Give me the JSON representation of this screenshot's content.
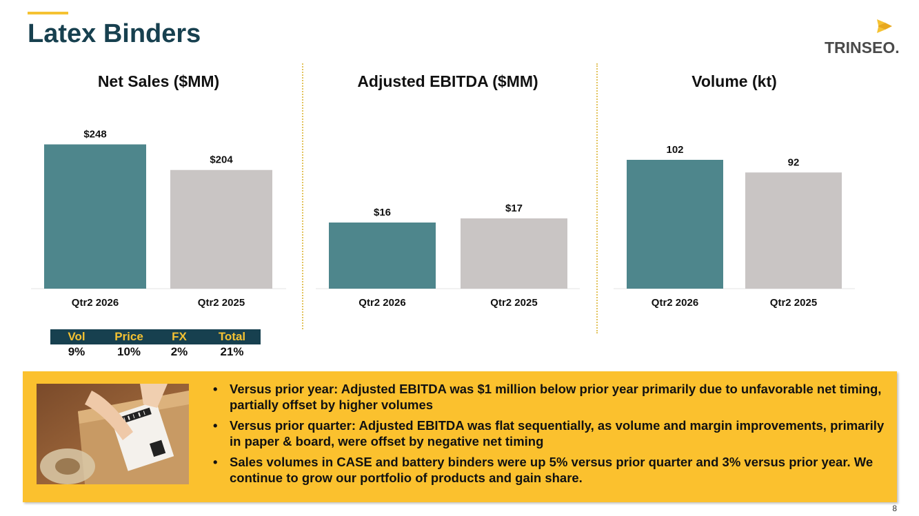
{
  "header": {
    "title": "Latex Binders"
  },
  "logo": {
    "text": "TRINSEO."
  },
  "chart_data": [
    {
      "type": "bar",
      "title": "Net Sales ($MM)",
      "categories": [
        "Qtr2 2026",
        "Qtr2 2025"
      ],
      "values": [
        248,
        204
      ],
      "data_labels": [
        "$248",
        "$204"
      ],
      "colors": [
        "#4e868c",
        "#c9c5c4"
      ],
      "ylim": [
        0,
        270
      ],
      "grid": false
    },
    {
      "type": "bar",
      "title": "Adjusted EBITDA ($MM)",
      "categories": [
        "Qtr2 2026",
        "Qtr2 2025"
      ],
      "values": [
        16,
        17
      ],
      "data_labels": [
        "$16",
        "$17"
      ],
      "colors": [
        "#4e868c",
        "#c9c5c4"
      ],
      "ylim": [
        0,
        40
      ],
      "grid": false
    },
    {
      "type": "bar",
      "title": "Volume (kt)",
      "categories": [
        "Qtr2 2026",
        "Qtr2 2025"
      ],
      "values": [
        102,
        92
      ],
      "data_labels": [
        "102",
        "92"
      ],
      "colors": [
        "#4e868c",
        "#c9c5c4"
      ],
      "ylim": [
        0,
        120
      ],
      "grid": false
    }
  ],
  "bridge": {
    "headers": [
      "Vol",
      "Price",
      "FX",
      "Total"
    ],
    "values": [
      "9%",
      "10%",
      "2%",
      "21%"
    ]
  },
  "callout": {
    "bullets": [
      "Versus prior year: Adjusted EBITDA was $1 million below prior year primarily due to unfavorable net timing, partially offset by higher volumes",
      "Versus prior quarter: Adjusted EBITDA was flat sequentially, as volume and margin improvements, primarily in paper & board, were offset by negative net timing",
      "Sales volumes in CASE and battery binders were up 5% versus prior quarter and 3% versus prior year. We continue to grow our portfolio of products and gain share."
    ],
    "photo_icon": "package-label-photo"
  },
  "footer": {
    "page_number": "8"
  },
  "colors": {
    "accent": "#f5c232",
    "title": "#17404f",
    "teal_bar": "#4e868c",
    "gray_bar": "#c9c5c4",
    "callout_bg": "#fbc12e"
  }
}
